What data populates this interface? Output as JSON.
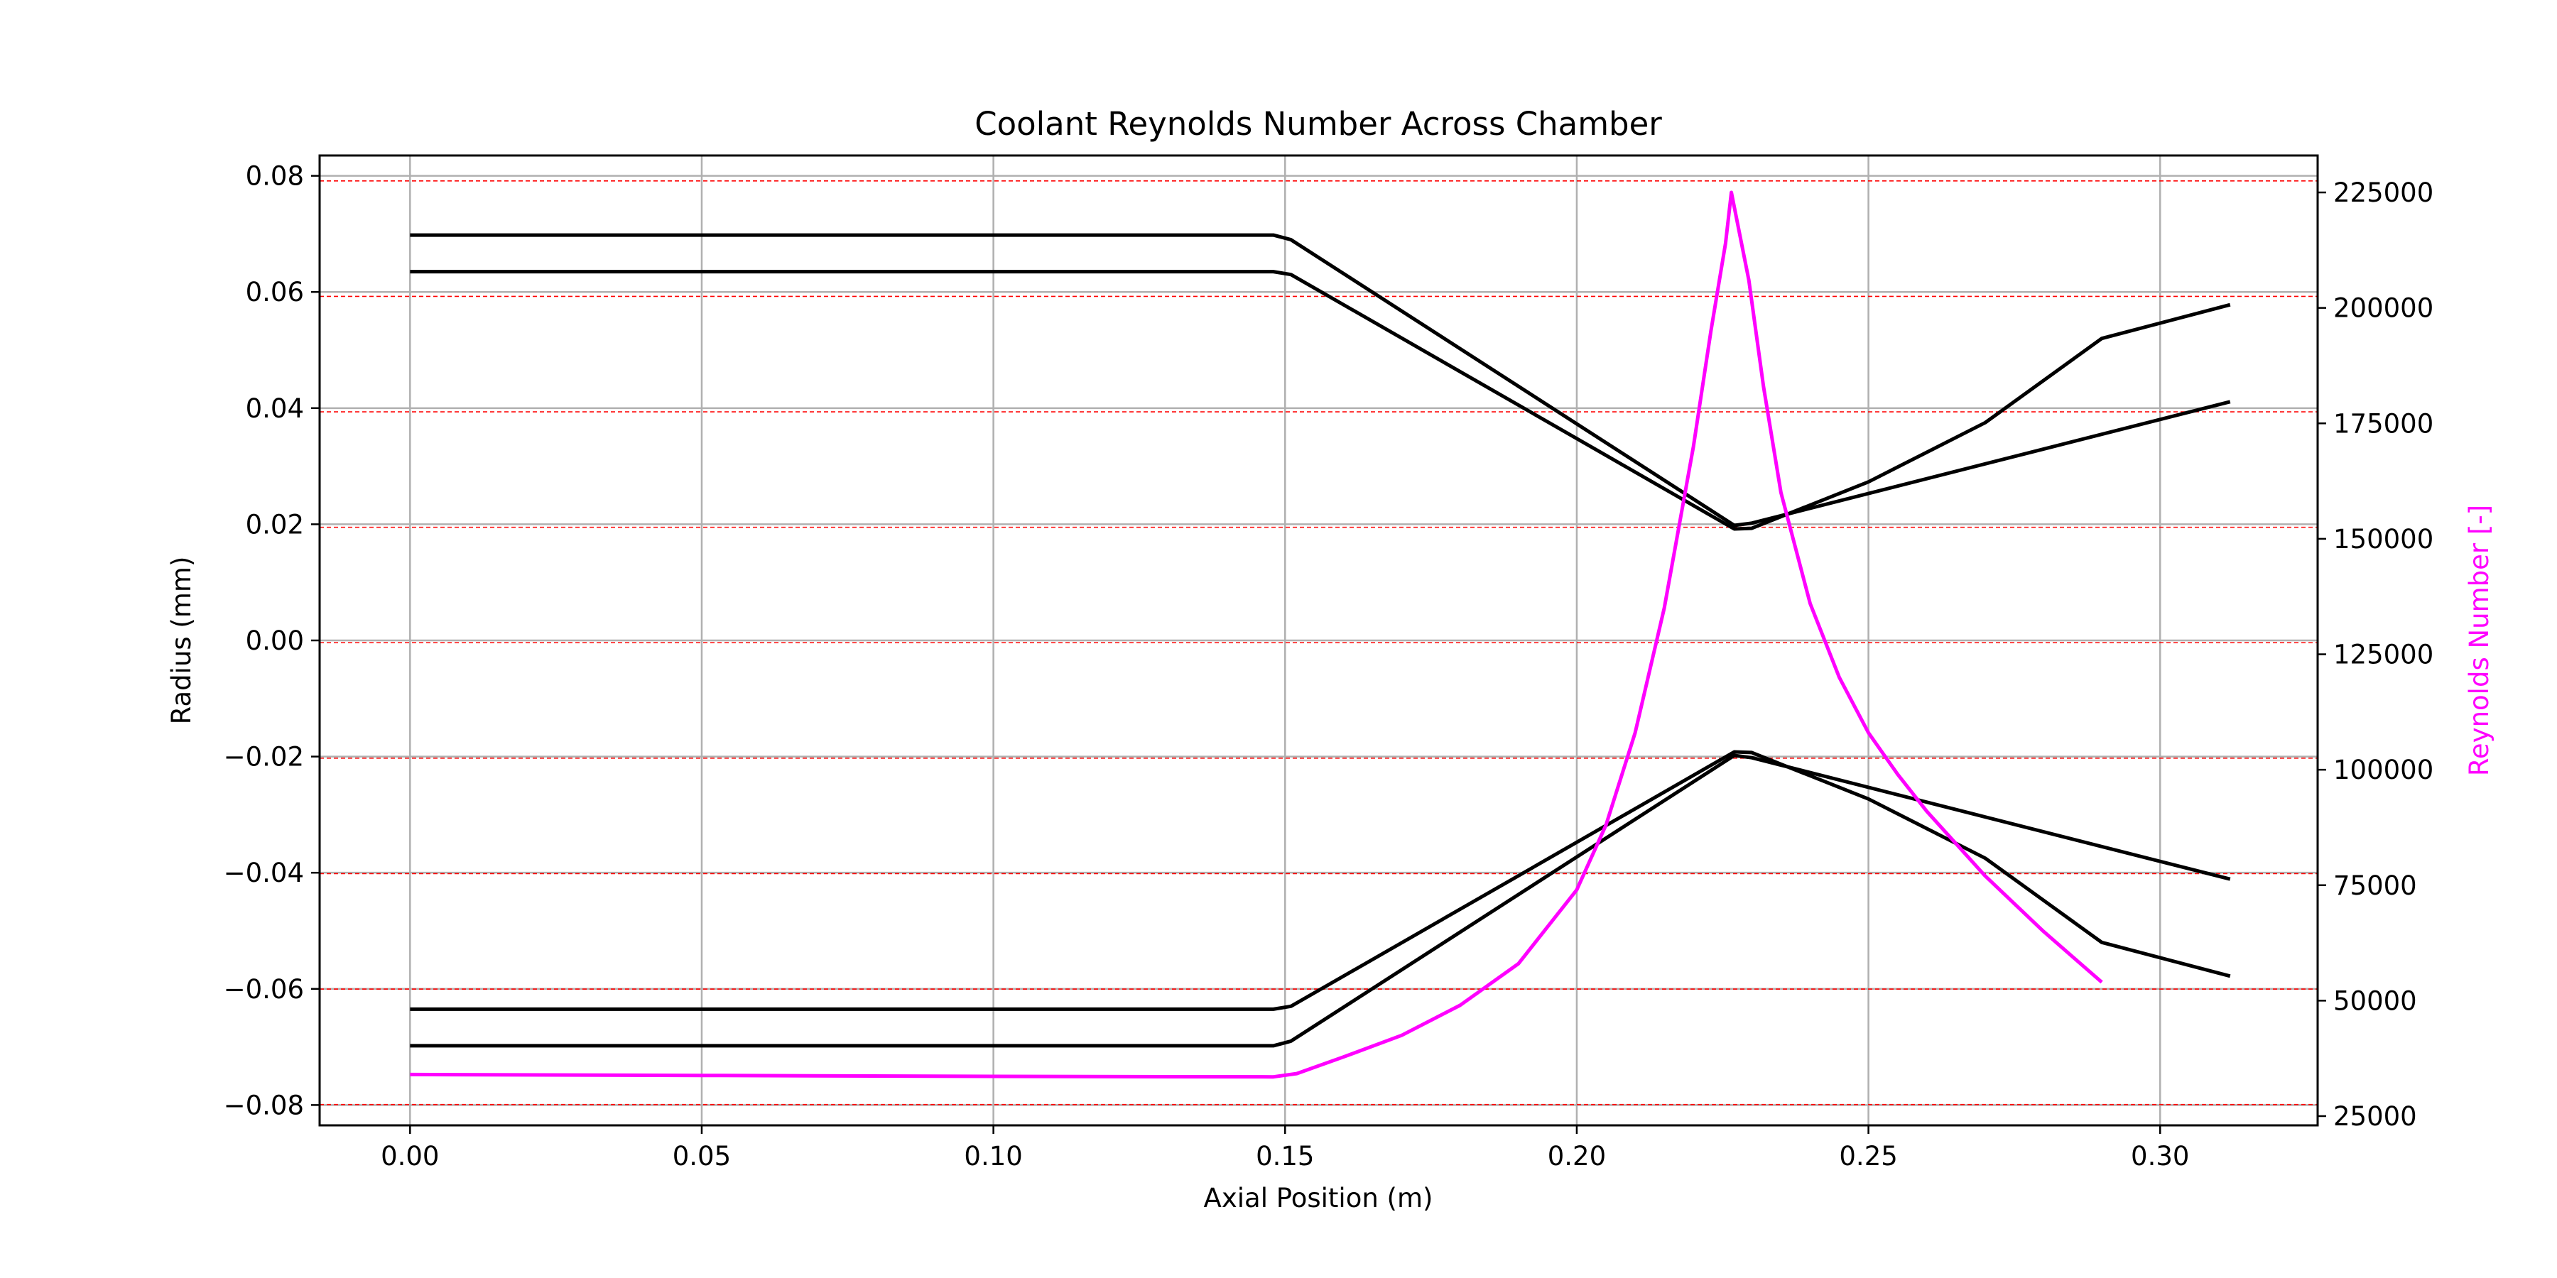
{
  "chart_data": {
    "type": "line",
    "title": "Coolant Reynolds Number Across Chamber",
    "xlabel": "Axial Position (m)",
    "ylabel": "Radius (mm)",
    "ylabel_right": "Reynolds Number [-]",
    "xlim": [
      -0.0155,
      0.327
    ],
    "ylim": [
      -0.0835,
      0.0835
    ],
    "ylim_right": [
      23000,
      233000
    ],
    "x_ticks": [
      "0.00",
      "0.05",
      "0.10",
      "0.15",
      "0.20",
      "0.25",
      "0.30"
    ],
    "y_ticks": [
      "0.08",
      "0.06",
      "0.04",
      "0.02",
      "0.00",
      "−0.02",
      "−0.04",
      "−0.06",
      "−0.08"
    ],
    "y_ticks_right": [
      "225000",
      "200000",
      "175000",
      "150000",
      "125000",
      "100000",
      "75000",
      "50000",
      "25000"
    ],
    "grid": true,
    "colors": {
      "contour": "#000000",
      "reynolds": "#ff00ff",
      "right_grid": "#ff0000",
      "grid": "#b0b0b0"
    },
    "contours": [
      {
        "x": [
          0,
          0.148,
          0.151,
          0.227,
          0.23,
          0.312
        ],
        "y": [
          0.0698,
          0.0698,
          0.069,
          0.0198,
          0.0202,
          0.0411
        ]
      },
      {
        "x": [
          0,
          0.148,
          0.151,
          0.227,
          0.23,
          0.25,
          0.27,
          0.29,
          0.312
        ],
        "y": [
          0.0635,
          0.0635,
          0.063,
          0.0192,
          0.0193,
          0.0273,
          0.0375,
          0.052,
          0.0578
        ]
      },
      {
        "x": [
          0,
          0.148,
          0.151,
          0.227,
          0.23,
          0.25,
          0.27,
          0.29,
          0.312
        ],
        "y": [
          -0.0635,
          -0.0635,
          -0.063,
          -0.0192,
          -0.0193,
          -0.0273,
          -0.0375,
          -0.052,
          -0.0578
        ]
      },
      {
        "x": [
          0,
          0.148,
          0.151,
          0.227,
          0.23,
          0.312
        ],
        "y": [
          -0.0698,
          -0.0698,
          -0.069,
          -0.0198,
          -0.0202,
          -0.0411
        ]
      }
    ],
    "series": [
      {
        "x": [
          0,
          0.05,
          0.1,
          0.148,
          0.152,
          0.16,
          0.17,
          0.18,
          0.19,
          0.2,
          0.205,
          0.21,
          0.215,
          0.22,
          0.223,
          0.2255,
          0.2265,
          0.2295,
          0.232,
          0.235,
          0.24,
          0.245,
          0.25,
          0.255,
          0.26,
          0.265,
          0.27,
          0.28,
          0.29
        ],
        "y": [
          34000,
          33800,
          33600,
          33500,
          34200,
          37800,
          42500,
          49000,
          58000,
          74000,
          88000,
          108000,
          135000,
          170000,
          195000,
          214000,
          225000,
          206000,
          183000,
          160000,
          136000,
          120000,
          108000,
          99000,
          91000,
          84000,
          77000,
          65000,
          54000
        ]
      }
    ],
    "right_grid_values": [
      22500,
      27500,
      52500,
      77500,
      102500,
      127500,
      152500,
      177500,
      202500,
      227500
    ]
  }
}
